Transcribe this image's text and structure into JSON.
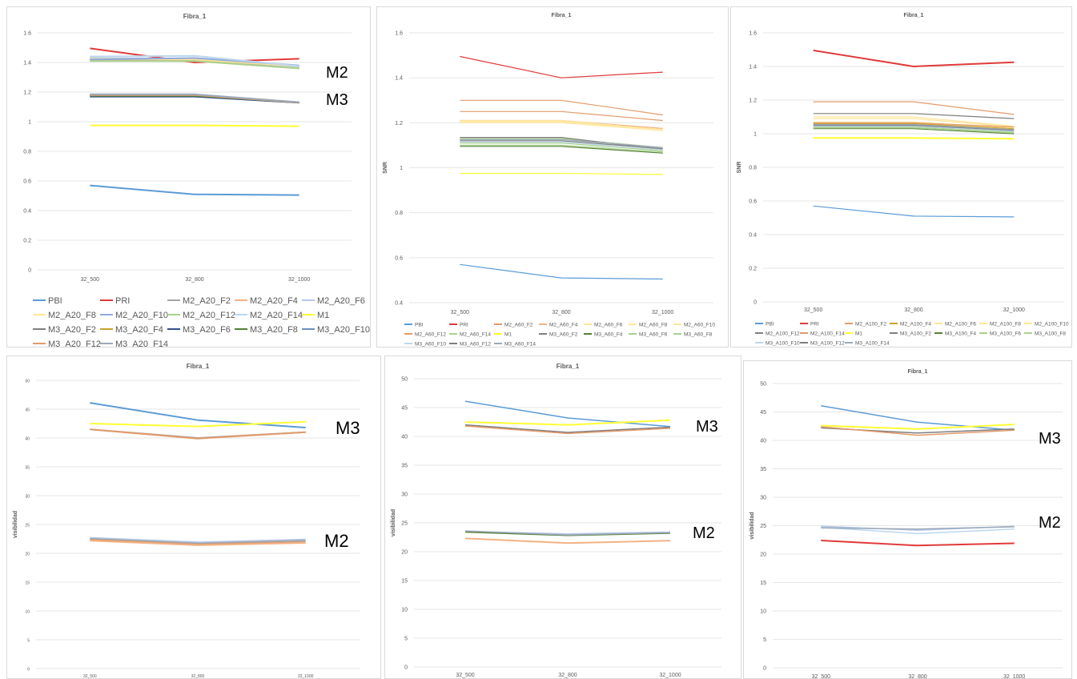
{
  "colors": {
    "PBI": "#5b9bd5",
    "PRI": "#e03a3a",
    "M1": "#ffff33",
    "M2_F2": "#a5a5a5",
    "M2_F4": "#f4b183",
    "M2_F6": "#b4c7e7",
    "M2_F8": "#ffe699",
    "M2_F10": "#8faadc",
    "M2_F12": "#a9d18e",
    "M2_F14": "#bdd7ee",
    "M3_F2": "#7f7f7f",
    "M3_F4": "#c9a227",
    "M3_F6": "#2f4f8f",
    "M3_F8": "#548235",
    "M3_F10": "#6c8ebf",
    "M3_F12": "#e39a6a",
    "M3_F14": "#9aa9b9"
  },
  "chart_data": [
    {
      "type": "line",
      "title": "Fibra_1",
      "ylabel": "",
      "ylim": [
        0,
        1.6
      ],
      "yticks": [
        "0",
        "0.2",
        "0.4",
        "0.6",
        "0.8",
        "1",
        "1.2",
        "1.4",
        "1.6"
      ],
      "categories": [
        "32_500",
        "32_800",
        "32_1000"
      ],
      "annotations": [
        "M2",
        "M3"
      ],
      "series": [
        {
          "name": "PBI",
          "ck": "PBI",
          "w": 2,
          "values": [
            0.57,
            0.51,
            0.505
          ]
        },
        {
          "name": "PRI",
          "ck": "PRI",
          "w": 2,
          "values": [
            1.495,
            1.4,
            1.425
          ]
        },
        {
          "name": "M2_A20_F2",
          "ck": "M2_F2",
          "w": 2,
          "values": [
            1.42,
            1.415,
            1.365
          ]
        },
        {
          "name": "M2_A20_F4",
          "ck": "M2_F4",
          "w": 2,
          "values": [
            1.415,
            1.41,
            1.36
          ]
        },
        {
          "name": "M2_A20_F6",
          "ck": "M2_F6",
          "w": 2,
          "values": [
            1.43,
            1.425,
            1.37
          ]
        },
        {
          "name": "M2_A20_F8",
          "ck": "M2_F8",
          "w": 2,
          "values": [
            1.425,
            1.42,
            1.375
          ]
        },
        {
          "name": "M2_A20_F10",
          "ck": "M2_F10",
          "w": 2,
          "values": [
            1.42,
            1.43,
            1.38
          ]
        },
        {
          "name": "M2_A20_F12",
          "ck": "M2_F12",
          "w": 2,
          "values": [
            1.41,
            1.41,
            1.36
          ]
        },
        {
          "name": "M2_A20_F14",
          "ck": "M2_F14",
          "w": 2,
          "values": [
            1.44,
            1.445,
            1.375
          ]
        },
        {
          "name": "M1",
          "ck": "M1",
          "w": 2,
          "values": [
            0.975,
            0.975,
            0.97
          ]
        },
        {
          "name": "M3_A20_F2",
          "ck": "M3_F2",
          "w": 2,
          "values": [
            1.175,
            1.175,
            1.13
          ]
        },
        {
          "name": "M3_A20_F4",
          "ck": "M3_F4",
          "w": 2,
          "values": [
            1.18,
            1.18,
            1.13
          ]
        },
        {
          "name": "M3_A20_F6",
          "ck": "M3_F6",
          "w": 2,
          "values": [
            1.17,
            1.17,
            1.128
          ]
        },
        {
          "name": "M3_A20_F8",
          "ck": "M3_F8",
          "w": 2,
          "values": [
            1.175,
            1.175,
            1.13
          ]
        },
        {
          "name": "M3_A20_F10",
          "ck": "M3_F10",
          "w": 2,
          "values": [
            1.18,
            1.18,
            1.13
          ]
        },
        {
          "name": "M3_A20_F12",
          "ck": "M3_F12",
          "w": 2,
          "values": [
            1.18,
            1.18,
            1.13
          ]
        },
        {
          "name": "M3_A20_F14",
          "ck": "M3_F14",
          "w": 2,
          "values": [
            1.185,
            1.185,
            1.132
          ]
        }
      ]
    },
    {
      "type": "line",
      "title": "Fibra_1",
      "ylabel": "SNR",
      "ylim": [
        0.4,
        1.6
      ],
      "yticks": [
        "0.4",
        "0.6",
        "0.8",
        "1",
        "1.2",
        "1.4",
        "1.6"
      ],
      "categories": [
        "32_500",
        "32_800",
        "32_1000"
      ],
      "annotations": [],
      "series": [
        {
          "name": "PBI",
          "ck": "PBI",
          "w": 1.2,
          "values": [
            0.57,
            0.51,
            0.505
          ]
        },
        {
          "name": "PRI",
          "ck": "PRI",
          "w": 1.2,
          "values": [
            1.495,
            1.4,
            1.425
          ]
        },
        {
          "name": "M2_A60_F2",
          "ck": "M3_F12",
          "w": 1.2,
          "values": [
            1.3,
            1.3,
            1.235
          ]
        },
        {
          "name": "M2_A60_F4",
          "ck": "M2_F4",
          "w": 1.2,
          "values": [
            1.21,
            1.21,
            1.175
          ]
        },
        {
          "name": "M2_A60_F6",
          "ck": "M2_F8",
          "w": 1.2,
          "values": [
            1.205,
            1.205,
            1.17
          ]
        },
        {
          "name": "M2_A60_F8",
          "ck": "M2_F8",
          "w": 1.2,
          "values": [
            1.2,
            1.2,
            1.165
          ]
        },
        {
          "name": "M2_A60_F10",
          "ck": "M2_F8",
          "w": 1.2,
          "values": [
            1.21,
            1.21,
            1.17
          ]
        },
        {
          "name": "M2_A60_F12",
          "ck": "M3_F12",
          "w": 1.2,
          "values": [
            1.25,
            1.25,
            1.21
          ]
        },
        {
          "name": "M2_A60_F14",
          "ck": "M2_F12",
          "w": 1.2,
          "values": [
            1.13,
            1.13,
            1.09
          ]
        },
        {
          "name": "M1",
          "ck": "M1",
          "w": 1.2,
          "values": [
            0.975,
            0.975,
            0.97
          ]
        },
        {
          "name": "M3_A60_F2",
          "ck": "M3_F2",
          "w": 1.2,
          "values": [
            1.135,
            1.135,
            1.08
          ]
        },
        {
          "name": "M3_A60_F4",
          "ck": "M3_F8",
          "w": 1.2,
          "values": [
            1.095,
            1.095,
            1.065
          ]
        },
        {
          "name": "M3_A60_F6",
          "ck": "M2_F12",
          "w": 1.2,
          "values": [
            1.1,
            1.1,
            1.07
          ]
        },
        {
          "name": "M3_A60_F8",
          "ck": "M2_F12",
          "w": 1.2,
          "values": [
            1.11,
            1.11,
            1.075
          ]
        },
        {
          "name": "M3_A60_F10",
          "ck": "M2_F14",
          "w": 1.2,
          "values": [
            1.115,
            1.115,
            1.08
          ]
        },
        {
          "name": "M3_A60_F12",
          "ck": "M3_F2",
          "w": 1.2,
          "values": [
            1.12,
            1.12,
            1.085
          ]
        },
        {
          "name": "M3_A60_F14",
          "ck": "M3_F14",
          "w": 1.2,
          "values": [
            1.125,
            1.125,
            1.09
          ]
        }
      ]
    },
    {
      "type": "line",
      "title": "Fibra_1",
      "ylabel": "SNR",
      "ylim": [
        0,
        1.6
      ],
      "yticks": [
        "0",
        "0.2",
        "0.4",
        "0.6",
        "0.8",
        "1",
        "1.2",
        "1.4",
        "1.6"
      ],
      "categories": [
        "32_500",
        "32_800",
        "32_1000"
      ],
      "annotations": [],
      "series": [
        {
          "name": "PBI",
          "ck": "PBI",
          "w": 1.2,
          "values": [
            0.57,
            0.51,
            0.505
          ]
        },
        {
          "name": "PRI",
          "ck": "PRI",
          "w": 2,
          "values": [
            1.495,
            1.4,
            1.425
          ]
        },
        {
          "name": "M2_A100_F2",
          "ck": "M3_F12",
          "w": 1.2,
          "values": [
            1.19,
            1.19,
            1.115
          ]
        },
        {
          "name": "M2_A100_F4",
          "ck": "M3_F4",
          "w": 1.2,
          "values": [
            1.06,
            1.06,
            1.03
          ]
        },
        {
          "name": "M2_A100_F6",
          "ck": "M2_F8",
          "w": 1.2,
          "values": [
            1.07,
            1.07,
            1.035
          ]
        },
        {
          "name": "M2_A100_F8",
          "ck": "M2_F8",
          "w": 1.2,
          "values": [
            1.09,
            1.09,
            1.04
          ]
        },
        {
          "name": "M2_A100_F10",
          "ck": "M2_F8",
          "w": 1.2,
          "values": [
            1.1,
            1.1,
            1.045
          ]
        },
        {
          "name": "M2_A100_F12",
          "ck": "M3_F2",
          "w": 1.2,
          "values": [
            1.12,
            1.12,
            1.09
          ]
        },
        {
          "name": "M2_A100_F14",
          "ck": "M3_F12",
          "w": 1.2,
          "values": [
            1.065,
            1.065,
            1.04
          ]
        },
        {
          "name": "M1",
          "ck": "M1",
          "w": 2,
          "values": [
            0.975,
            0.975,
            0.97
          ]
        },
        {
          "name": "M3_A100_F2",
          "ck": "M3_F2",
          "w": 1.2,
          "values": [
            1.05,
            1.05,
            1.025
          ]
        },
        {
          "name": "M3_A100_F4",
          "ck": "M3_F8",
          "w": 1.2,
          "values": [
            1.03,
            1.03,
            1.0
          ]
        },
        {
          "name": "M3_A100_F6",
          "ck": "M2_F12",
          "w": 1.2,
          "values": [
            1.035,
            1.035,
            1.005
          ]
        },
        {
          "name": "M3_A100_F8",
          "ck": "M2_F12",
          "w": 1.2,
          "values": [
            1.04,
            1.04,
            1.01
          ]
        },
        {
          "name": "M3_A100_F10",
          "ck": "M2_F14",
          "w": 1.2,
          "values": [
            1.045,
            1.045,
            1.015
          ]
        },
        {
          "name": "M3_A100_F12",
          "ck": "M3_F2",
          "w": 1.2,
          "values": [
            1.05,
            1.05,
            1.02
          ]
        },
        {
          "name": "M3_A100_F14",
          "ck": "M3_F14",
          "w": 1.2,
          "values": [
            1.055,
            1.055,
            1.025
          ]
        }
      ]
    },
    {
      "type": "line",
      "title": "Fibra_1",
      "ylabel": "visibilidad",
      "ylim": [
        0,
        50
      ],
      "yticks": [
        "0",
        "5",
        "10",
        "15",
        "20",
        "25",
        "30",
        "35",
        "40",
        "45",
        "50"
      ],
      "categories": [
        "32_500",
        "32_800",
        "32_1000"
      ],
      "annotations": [
        "M3",
        "M2"
      ],
      "series": [
        {
          "ck": "PBI",
          "w": 2,
          "values": [
            46.1,
            43.1,
            41.8
          ]
        },
        {
          "ck": "M1",
          "w": 2,
          "values": [
            42.5,
            42.0,
            42.8
          ]
        },
        {
          "ck": "M2_F2",
          "w": 2,
          "values": [
            41.5,
            40.0,
            41.0
          ]
        },
        {
          "ck": "M3_F12",
          "w": 2,
          "values": [
            41.5,
            39.9,
            41.0
          ]
        },
        {
          "ck": "M2_F6",
          "w": 2,
          "values": [
            22.7,
            21.9,
            22.4
          ]
        },
        {
          "ck": "M2_F2",
          "w": 2,
          "values": [
            22.5,
            21.7,
            22.2
          ]
        },
        {
          "ck": "M3_F12",
          "w": 2,
          "values": [
            22.3,
            21.5,
            21.9
          ]
        },
        {
          "ck": "M2_F4",
          "w": 2,
          "values": [
            22.2,
            21.4,
            21.8
          ]
        }
      ]
    },
    {
      "type": "line",
      "title": "Fibra_1",
      "ylabel": "visibilidad",
      "ylim": [
        0,
        50
      ],
      "yticks": [
        "0",
        "5",
        "10",
        "15",
        "20",
        "25",
        "30",
        "35",
        "40",
        "45",
        "50"
      ],
      "categories": [
        "32_500",
        "32_800",
        "32_1000"
      ],
      "annotations": [
        "M3",
        "M2"
      ],
      "series": [
        {
          "ck": "PBI",
          "w": 1.5,
          "values": [
            46.1,
            43.2,
            41.7
          ]
        },
        {
          "ck": "M1",
          "w": 2,
          "values": [
            42.5,
            42.0,
            42.8
          ]
        },
        {
          "ck": "M3_F2",
          "w": 1.5,
          "values": [
            42.0,
            40.7,
            41.6
          ]
        },
        {
          "ck": "M3_F12",
          "w": 1.5,
          "values": [
            41.8,
            40.5,
            41.4
          ]
        },
        {
          "ck": "M2_F6",
          "w": 1.5,
          "values": [
            23.5,
            23.1,
            23.4
          ]
        },
        {
          "ck": "M3_F8",
          "w": 1.5,
          "values": [
            23.4,
            22.8,
            23.2
          ]
        },
        {
          "ck": "M3_F14",
          "w": 1.5,
          "values": [
            23.6,
            22.9,
            23.3
          ]
        },
        {
          "ck": "M2_F4",
          "w": 2,
          "values": [
            22.3,
            21.5,
            21.9
          ]
        }
      ]
    },
    {
      "type": "line",
      "title": "Fibra_1",
      "ylabel": "visibilidad",
      "ylim": [
        0,
        50
      ],
      "yticks": [
        "0",
        "5",
        "10",
        "15",
        "20",
        "25",
        "30",
        "35",
        "40",
        "45",
        "50"
      ],
      "categories": [
        "32_500",
        "32_800",
        "32_1000"
      ],
      "annotations": [
        "M3",
        "M2"
      ],
      "series": [
        {
          "ck": "PBI",
          "w": 1.5,
          "values": [
            46.1,
            43.2,
            41.8
          ]
        },
        {
          "ck": "M1",
          "w": 2,
          "values": [
            42.6,
            42.0,
            42.8
          ]
        },
        {
          "ck": "M3_F2",
          "w": 1.5,
          "values": [
            42.2,
            41.3,
            42.0
          ]
        },
        {
          "ck": "M3_F12",
          "w": 1.5,
          "values": [
            42.4,
            40.9,
            41.8
          ]
        },
        {
          "ck": "M2_F6",
          "w": 1.5,
          "values": [
            24.9,
            24.2,
            24.9
          ]
        },
        {
          "ck": "M2_F14",
          "w": 1.5,
          "values": [
            24.7,
            23.6,
            24.4
          ]
        },
        {
          "ck": "M3_F14",
          "w": 1.5,
          "values": [
            24.6,
            24.4,
            24.8
          ]
        },
        {
          "ck": "PRI",
          "w": 2,
          "values": [
            22.4,
            21.5,
            21.9
          ]
        }
      ]
    }
  ]
}
